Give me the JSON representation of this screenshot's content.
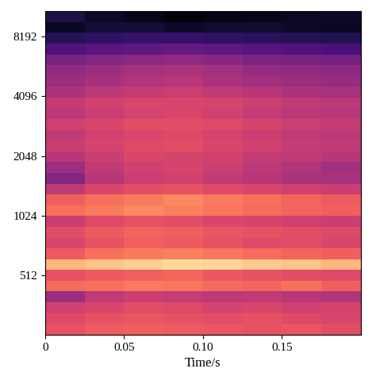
{
  "chart_data": {
    "type": "heatmap",
    "xlabel": "Time/s",
    "log": "y",
    "xlim": [
      0,
      0.2
    ],
    "ylim": [
      256,
      11025
    ],
    "xticks": [
      0,
      0.05,
      {
        "value": 0.1,
        "label": "0.10"
      },
      0.15
    ],
    "yticks": [
      512,
      1024,
      2048,
      4096,
      8192
    ],
    "x_edges": [
      0,
      0.025,
      0.05,
      0.075,
      0.1,
      0.125,
      0.15,
      0.175,
      0.2
    ],
    "y_edges": [
      256,
      290,
      329,
      373,
      423,
      479,
      543,
      616,
      698,
      791,
      897,
      1017,
      1153,
      1307,
      1481,
      1679,
      1904,
      2158,
      2446,
      2773,
      3144,
      3564,
      4040,
      4580,
      5192,
      5886,
      6672,
      7564,
      8575,
      9720,
      11025
    ],
    "clim": [
      -80,
      0
    ],
    "cells": [
      [
        -30,
        -28,
        -27,
        -28,
        -29,
        -30,
        -29,
        -31
      ],
      [
        -32,
        -30,
        -29,
        -30,
        -31,
        -30,
        -32,
        -33
      ],
      [
        -35,
        -33,
        -31,
        -32,
        -34,
        -33,
        -35,
        -34
      ],
      [
        -45,
        -38,
        -36,
        -37,
        -39,
        -38,
        -40,
        -41
      ],
      [
        -25,
        -24,
        -22,
        -23,
        -25,
        -26,
        -24,
        -27
      ],
      [
        -30,
        -28,
        -27,
        -26,
        -29,
        -30,
        -31,
        -32
      ],
      [
        -12,
        -10,
        -8,
        -6,
        -7,
        -9,
        -10,
        -12
      ],
      [
        -28,
        -24,
        -22,
        -21,
        -23,
        -25,
        -26,
        -27
      ],
      [
        -33,
        -30,
        -27,
        -28,
        -30,
        -32,
        -31,
        -33
      ],
      [
        -31,
        -28,
        -26,
        -27,
        -29,
        -30,
        -31,
        -32
      ],
      [
        -36,
        -32,
        -30,
        -31,
        -33,
        -34,
        -35,
        -36
      ],
      [
        -24,
        -22,
        -20,
        -21,
        -23,
        -25,
        -26,
        -27
      ],
      [
        -27,
        -24,
        -22,
        -20,
        -22,
        -24,
        -26,
        -28
      ],
      [
        -38,
        -33,
        -31,
        -30,
        -32,
        -33,
        -35,
        -36
      ],
      [
        -50,
        -40,
        -36,
        -35,
        -38,
        -40,
        -42,
        -43
      ],
      [
        -45,
        -38,
        -35,
        -34,
        -36,
        -39,
        -41,
        -44
      ],
      [
        -40,
        -36,
        -33,
        -34,
        -35,
        -37,
        -38,
        -40
      ],
      [
        -36,
        -34,
        -32,
        -31,
        -33,
        -35,
        -37,
        -38
      ],
      [
        -38,
        -35,
        -33,
        -32,
        -34,
        -36,
        -38,
        -39
      ],
      [
        -35,
        -33,
        -31,
        -31,
        -32,
        -34,
        -36,
        -37
      ],
      [
        -39,
        -36,
        -34,
        -33,
        -35,
        -37,
        -39,
        -40
      ],
      [
        -37,
        -35,
        -33,
        -33,
        -34,
        -36,
        -38,
        -39
      ],
      [
        -42,
        -39,
        -37,
        -36,
        -38,
        -40,
        -42,
        -43
      ],
      [
        -45,
        -43,
        -41,
        -40,
        -42,
        -44,
        -45,
        -46
      ],
      [
        -47,
        -45,
        -43,
        -42,
        -44,
        -46,
        -47,
        -48
      ],
      [
        -52,
        -50,
        -48,
        -47,
        -49,
        -51,
        -52,
        -53
      ],
      [
        -60,
        -58,
        -57,
        -56,
        -57,
        -59,
        -60,
        -61
      ],
      [
        -68,
        -66,
        -65,
        -65,
        -66,
        -67,
        -68,
        -69
      ],
      [
        -75,
        -72,
        -72,
        -74,
        -73,
        -73,
        -74,
        -75
      ],
      [
        -70,
        -74,
        -76,
        -78,
        -77,
        -76,
        -75,
        -74
      ]
    ]
  }
}
